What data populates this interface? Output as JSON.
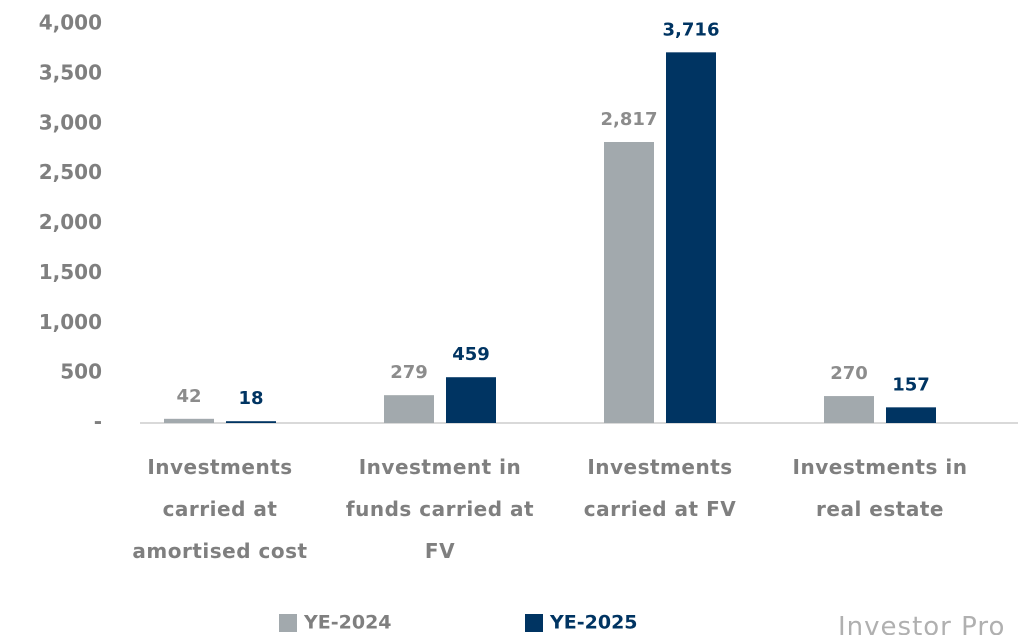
{
  "chart_data": {
    "type": "bar",
    "categories": [
      "Investments carried at amortised cost",
      "Investment in funds carried at FV",
      "Investments carried at FV",
      "Investments in real estate"
    ],
    "series": [
      {
        "name": "YE-2024",
        "color": "#a2a9ad",
        "values": [
          42,
          279,
          2817,
          270
        ],
        "value_labels": [
          "42",
          "279",
          "2,817",
          "270"
        ]
      },
      {
        "name": "YE-2025",
        "color": "#003462",
        "values": [
          18,
          459,
          3716,
          157
        ],
        "value_labels": [
          "18",
          "459",
          "3,716",
          "157"
        ]
      }
    ],
    "ylim": [
      0,
      4000
    ],
    "yticks": [
      {
        "value": 0,
        "label": "-"
      },
      500,
      {
        "value": 1000,
        "label": "1,000"
      },
      {
        "value": 1500,
        "label": "1,500"
      },
      {
        "value": 2000,
        "label": "2,000"
      },
      {
        "value": 2500,
        "label": "2,500"
      },
      {
        "value": 3000,
        "label": "3,000"
      },
      {
        "value": 3500,
        "label": "3,500"
      },
      {
        "value": 4000,
        "label": "4,000"
      }
    ],
    "grid": false,
    "legend": "bottom"
  },
  "footer": "Investor Pro"
}
